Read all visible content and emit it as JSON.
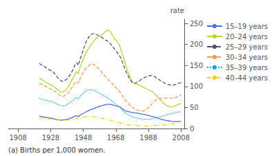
{
  "chart_data": {
    "type": "line",
    "ylabel": "rate",
    "footnote": "(a) Births per 1,000 women.",
    "xlim": [
      1902,
      2010
    ],
    "xticks": [
      1908,
      1928,
      1948,
      1968,
      1988,
      2008
    ],
    "ylim": [
      0,
      260
    ],
    "yticks": [
      0,
      50,
      100,
      150,
      200,
      250
    ],
    "grid": false,
    "legend": "right",
    "x": [
      1921,
      1922,
      1923,
      1924,
      1925,
      1926,
      1927,
      1928,
      1929,
      1930,
      1931,
      1932,
      1933,
      1934,
      1935,
      1936,
      1937,
      1938,
      1939,
      1940,
      1941,
      1942,
      1943,
      1944,
      1945,
      1946,
      1947,
      1948,
      1949,
      1950,
      1951,
      1952,
      1953,
      1954,
      1955,
      1956,
      1957,
      1958,
      1959,
      1960,
      1961,
      1962,
      1963,
      1964,
      1965,
      1966,
      1967,
      1968,
      1969,
      1970,
      1971,
      1972,
      1973,
      1974,
      1975,
      1976,
      1977,
      1978,
      1979,
      1980,
      1981,
      1982,
      1983,
      1984,
      1985,
      1986,
      1987,
      1988,
      1989,
      1990,
      1991,
      1992,
      1993,
      1994,
      1995,
      1996,
      1997,
      1998,
      1999,
      2000,
      2001,
      2002,
      2003,
      2004,
      2005,
      2006,
      2007,
      2008
    ],
    "series": [
      {
        "name": "15–19 years",
        "line_style": "solid",
        "values": [
          30,
          29,
          28,
          27,
          27,
          26,
          25,
          25,
          24,
          23,
          22,
          21,
          21,
          20,
          20,
          21,
          21,
          22,
          23,
          24,
          26,
          28,
          30,
          30,
          28,
          32,
          34,
          36,
          38,
          40,
          42,
          44,
          46,
          47,
          48,
          50,
          51,
          53,
          54,
          55,
          56,
          57,
          58,
          58,
          57,
          56,
          55,
          54,
          53,
          52,
          50,
          47,
          44,
          42,
          41,
          40,
          39,
          38,
          37,
          37,
          37,
          36,
          35,
          34,
          34,
          33,
          32,
          31,
          30,
          29,
          28,
          27,
          25,
          24,
          23,
          22,
          21,
          20,
          19,
          18,
          18,
          17,
          17,
          17,
          17,
          17,
          17,
          17
        ]
      },
      {
        "name": "20–24 years",
        "line_style": "solid",
        "values": [
          120,
          118,
          115,
          112,
          110,
          108,
          106,
          104,
          102,
          100,
          96,
          93,
          90,
          88,
          86,
          88,
          90,
          95,
          100,
          108,
          115,
          122,
          130,
          135,
          130,
          145,
          155,
          165,
          175,
          182,
          188,
          195,
          200,
          205,
          210,
          215,
          218,
          220,
          222,
          225,
          228,
          232,
          235,
          232,
          228,
          222,
          215,
          210,
          205,
          200,
          190,
          178,
          165,
          152,
          140,
          130,
          120,
          112,
          108,
          106,
          105,
          104,
          102,
          100,
          98,
          96,
          94,
          92,
          90,
          88,
          86,
          82,
          78,
          74,
          70,
          66,
          62,
          58,
          55,
          53,
          52,
          51,
          52,
          53,
          55,
          57,
          58,
          60
        ]
      },
      {
        "name": "25–29 years",
        "line_style": "dashed",
        "values": [
          155,
          152,
          150,
          148,
          145,
          142,
          140,
          138,
          136,
          133,
          128,
          123,
          118,
          115,
          112,
          113,
          115,
          118,
          122,
          128,
          135,
          142,
          152,
          157,
          150,
          165,
          175,
          188,
          198,
          208,
          215,
          220,
          224,
          226,
          226,
          224,
          222,
          220,
          218,
          215,
          212,
          210,
          208,
          205,
          200,
          195,
          190,
          185,
          180,
          175,
          168,
          158,
          148,
          138,
          130,
          122,
          115,
          110,
          108,
          108,
          110,
          112,
          115,
          118,
          120,
          122,
          124,
          125,
          126,
          126,
          125,
          123,
          120,
          118,
          115,
          112,
          110,
          108,
          106,
          105,
          104,
          103,
          103,
          104,
          105,
          107,
          108,
          110
        ]
      },
      {
        "name": "30–34 years",
        "line_style": "dashed",
        "values": [
          108,
          106,
          104,
          102,
          100,
          98,
          96,
          94,
          92,
          90,
          87,
          84,
          81,
          78,
          76,
          77,
          79,
          82,
          86,
          91,
          97,
          103,
          109,
          112,
          108,
          118,
          126,
          134,
          140,
          145,
          148,
          152,
          154,
          153,
          151,
          148,
          144,
          140,
          136,
          131,
          126,
          122,
          118,
          114,
          110,
          106,
          102,
          98,
          94,
          90,
          84,
          78,
          72,
          67,
          62,
          58,
          54,
          51,
          48,
          46,
          44,
          43,
          42,
          41,
          42,
          44,
          46,
          50,
          54,
          58,
          63,
          66,
          68,
          70,
          71,
          72,
          72,
          72,
          72,
          72,
          72,
          72,
          72,
          73,
          74,
          76,
          78,
          80
        ]
      },
      {
        "name": "35–39 years",
        "line_style": "dotted",
        "values": [
          72,
          70,
          69,
          68,
          67,
          66,
          65,
          64,
          63,
          62,
          60,
          58,
          56,
          55,
          54,
          54,
          55,
          57,
          59,
          62,
          65,
          68,
          72,
          73,
          70,
          76,
          80,
          84,
          88,
          90,
          91,
          92,
          92,
          91,
          90,
          88,
          86,
          84,
          82,
          80,
          78,
          75,
          72,
          70,
          67,
          64,
          61,
          58,
          55,
          52,
          48,
          44,
          40,
          37,
          34,
          32,
          30,
          28,
          27,
          26,
          25,
          24,
          23,
          22,
          22,
          22,
          22,
          22,
          22,
          23,
          24,
          25,
          26,
          27,
          28,
          29,
          30,
          31,
          32,
          33,
          34,
          35,
          36,
          37,
          38,
          39,
          40,
          41
        ]
      },
      {
        "name": "40–44 years",
        "line_style": "dashdot",
        "values": [
          26,
          25,
          25,
          24,
          24,
          23,
          23,
          22,
          22,
          21,
          21,
          20,
          20,
          19,
          19,
          19,
          19,
          20,
          20,
          21,
          22,
          23,
          24,
          24,
          23,
          25,
          26,
          27,
          28,
          28,
          29,
          29,
          29,
          28,
          28,
          27,
          27,
          26,
          25,
          24,
          23,
          22,
          21,
          20,
          19,
          18,
          17,
          16,
          15,
          14,
          13,
          12,
          11,
          10,
          9,
          9,
          8,
          8,
          7,
          7,
          7,
          6,
          6,
          6,
          6,
          6,
          6,
          6,
          6,
          6,
          7,
          7,
          7,
          7,
          8,
          8,
          8,
          9,
          9,
          10,
          10,
          11,
          11,
          12,
          13,
          14,
          15,
          16
        ]
      }
    ]
  }
}
